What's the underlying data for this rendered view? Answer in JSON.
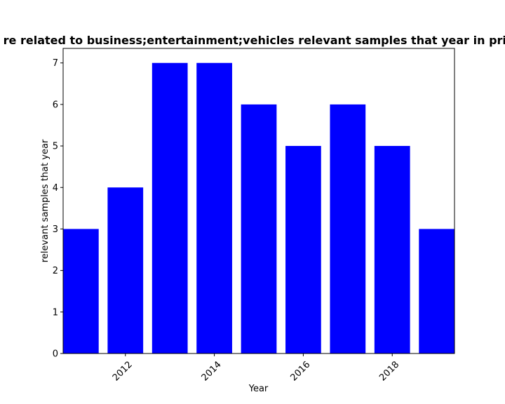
{
  "chart_data": {
    "type": "bar",
    "title": "re related to business;entertainment;vehicles relevant samples that year in priv",
    "xlabel": "Year",
    "ylabel": "relevant samples that year",
    "x": [
      2011,
      2012,
      2013,
      2014,
      2015,
      2016,
      2017,
      2018,
      2019
    ],
    "values": [
      3,
      4,
      7,
      7,
      6,
      5,
      6,
      5,
      3
    ],
    "xticks": [
      2012,
      2014,
      2016,
      2018
    ],
    "yticks": [
      0,
      1,
      2,
      3,
      4,
      5,
      6,
      7
    ],
    "xlim": [
      2010.6,
      2019.4
    ],
    "ylim": [
      0,
      7.35
    ],
    "bar_color": "#0000ff",
    "grid": false,
    "xtick_rotation": 45
  }
}
